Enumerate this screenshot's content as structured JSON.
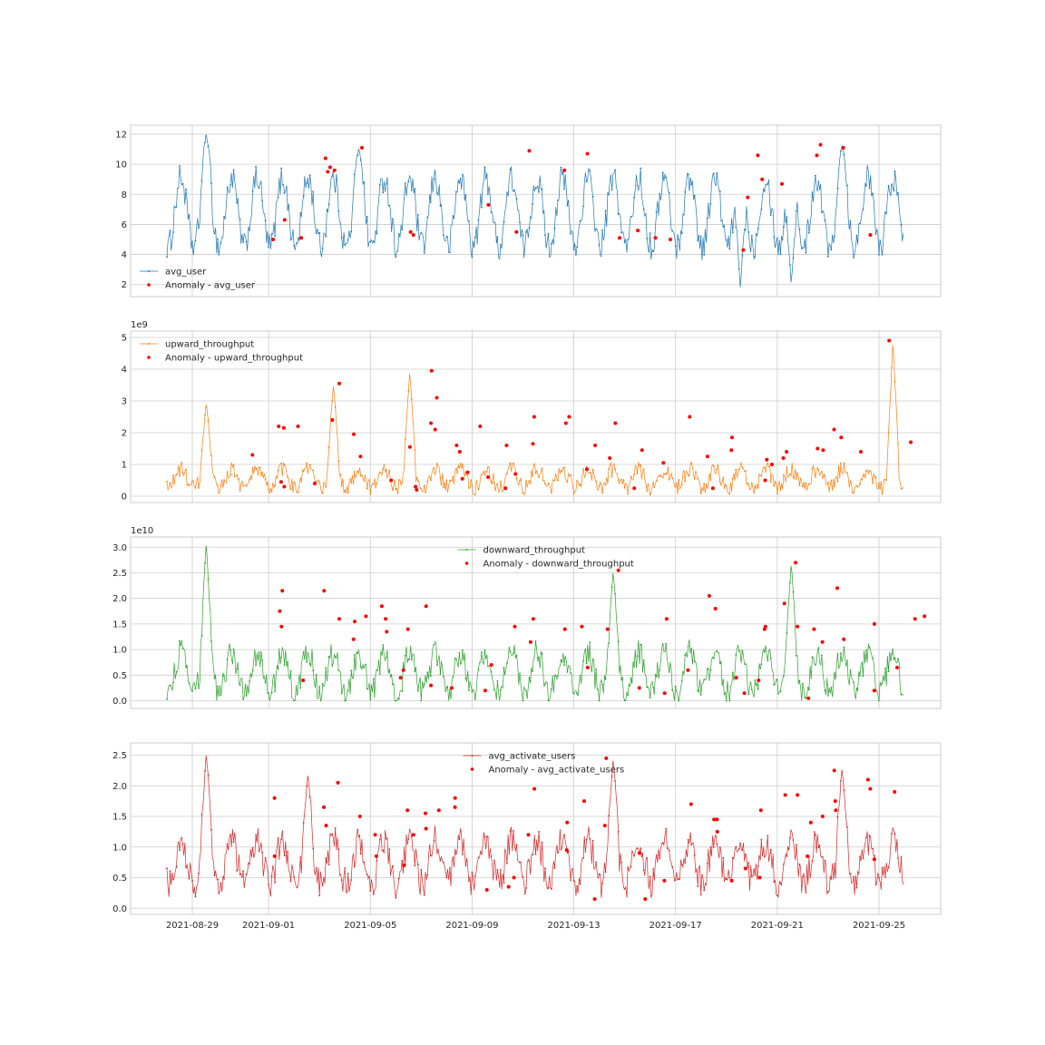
{
  "figure": {
    "x_ticks": [
      "2021-08-29",
      "2021-09-01",
      "2021-09-05",
      "2021-09-09",
      "2021-09-13",
      "2021-09-17",
      "2021-09-21",
      "2021-09-25"
    ]
  },
  "colors": {
    "avg_user": "#1f77b4",
    "upward_throughput": "#ff7f0e",
    "downward_throughput": "#2ca02c",
    "avg_activate_users": "#d62728",
    "anomaly": "#ff0000",
    "grid": "#cccccc",
    "frame": "#cccccc"
  },
  "chart_data": [
    {
      "type": "line",
      "x_range": [
        "2021-08-27",
        "2021-09-27"
      ],
      "series": [
        {
          "name": "avg_user",
          "mean": 6.8,
          "amplitude": 2.3,
          "noise": 0.9,
          "min": 1.6,
          "max": 12.1,
          "peaks": [
            [
              "2021-08-29",
              12.1
            ],
            [
              "2021-09-04",
              11.1
            ],
            [
              "2021-09-23",
              11.3
            ],
            [
              "2021-09-19",
              1.6
            ],
            [
              "2021-09-21",
              1.9
            ]
          ]
        },
        {
          "name": "Anomaly - avg_user",
          "x": [
            "2021-09-01",
            "2021-09-01",
            "2021-09-02",
            "2021-09-03",
            "2021-09-03",
            "2021-09-03",
            "2021-09-03",
            "2021-09-04",
            "2021-09-06",
            "2021-09-06",
            "2021-09-09",
            "2021-09-10",
            "2021-09-11",
            "2021-09-12",
            "2021-09-13",
            "2021-09-14",
            "2021-09-15",
            "2021-09-16",
            "2021-09-16",
            "2021-09-19",
            "2021-09-19",
            "2021-09-20",
            "2021-09-20",
            "2021-09-21",
            "2021-09-22",
            "2021-09-22",
            "2021-09-23",
            "2021-09-24"
          ],
          "y": [
            6.3,
            5.0,
            5.1,
            10.4,
            9.6,
            9.8,
            9.5,
            11.1,
            5.5,
            5.3,
            7.3,
            5.5,
            10.9,
            9.6,
            10.7,
            5.1,
            5.6,
            5.1,
            5.0,
            4.3,
            7.8,
            10.6,
            9.0,
            8.7,
            11.3,
            10.6,
            11.1,
            5.3
          ]
        }
      ],
      "ylim": [
        1.2,
        12.6
      ],
      "yticks": [
        2,
        4,
        6,
        8,
        10,
        12
      ],
      "scale_label": "",
      "legend": "lower-left"
    },
    {
      "type": "line",
      "x_range": [
        "2021-08-27",
        "2021-09-27"
      ],
      "series": [
        {
          "name": "upward_throughput",
          "mean": 0.55,
          "amplitude": 0.3,
          "noise": 0.25,
          "min": 0.05,
          "max": 4.9,
          "peaks": [
            [
              "2021-08-29",
              2.95
            ],
            [
              "2021-09-03",
              3.55
            ],
            [
              "2021-09-06",
              3.95
            ],
            [
              "2021-09-25",
              4.9
            ]
          ]
        },
        {
          "name": "Anomaly - upward_throughput",
          "x": [
            "2021-08-31",
            "2021-09-01",
            "2021-09-01",
            "2021-09-01",
            "2021-09-01",
            "2021-09-02",
            "2021-09-02",
            "2021-09-03",
            "2021-09-03",
            "2021-09-04",
            "2021-09-04",
            "2021-09-05",
            "2021-09-06",
            "2021-09-06",
            "2021-09-06",
            "2021-09-07",
            "2021-09-07",
            "2021-09-07",
            "2021-09-07",
            "2021-09-08",
            "2021-09-08",
            "2021-09-08",
            "2021-09-08",
            "2021-09-09",
            "2021-09-09",
            "2021-09-10",
            "2021-09-10",
            "2021-09-10",
            "2021-09-11",
            "2021-09-11",
            "2021-09-12",
            "2021-09-12",
            "2021-09-13",
            "2021-09-13",
            "2021-09-14",
            "2021-09-14",
            "2021-09-15",
            "2021-09-15",
            "2021-09-16",
            "2021-09-17",
            "2021-09-18",
            "2021-09-18",
            "2021-09-19",
            "2021-09-19",
            "2021-09-20",
            "2021-09-20",
            "2021-09-20",
            "2021-09-21",
            "2021-09-21",
            "2021-09-22",
            "2021-09-22",
            "2021-09-23",
            "2021-09-23",
            "2021-09-24",
            "2021-09-25",
            "2021-09-26"
          ],
          "y": [
            1.3,
            2.15,
            0.45,
            2.2,
            0.3,
            0.4,
            2.2,
            2.4,
            3.55,
            1.95,
            1.25,
            0.5,
            0.3,
            0.2,
            1.55,
            3.95,
            3.1,
            2.1,
            2.3,
            0.55,
            0.75,
            1.4,
            1.6,
            2.2,
            0.6,
            0.25,
            0.7,
            1.6,
            2.5,
            1.65,
            2.5,
            2.3,
            1.6,
            0.85,
            2.3,
            1.2,
            1.45,
            0.25,
            1.05,
            2.5,
            1.25,
            0.25,
            1.85,
            1.45,
            0.5,
            1.15,
            1.0,
            1.4,
            1.2,
            1.45,
            1.5,
            2.1,
            1.85,
            1.4,
            4.9,
            1.7
          ]
        }
      ],
      "ylim": [
        -0.2,
        5.2
      ],
      "yticks": [
        0,
        1,
        2,
        3,
        4,
        5
      ],
      "scale_label": "1e9",
      "legend": "top-left"
    },
    {
      "type": "line",
      "x_range": [
        "2021-08-27",
        "2021-09-27"
      ],
      "series": [
        {
          "name": "downward_throughput",
          "mean": 0.55,
          "amplitude": 0.4,
          "noise": 0.25,
          "min": 0.0,
          "max": 3.1,
          "peaks": [
            [
              "2021-08-29",
              3.1
            ],
            [
              "2021-09-14",
              2.55
            ],
            [
              "2021-09-21",
              2.7
            ]
          ]
        },
        {
          "name": "Anomaly - downward_throughput",
          "x": [
            "2021-09-01",
            "2021-09-01",
            "2021-09-01",
            "2021-09-02",
            "2021-09-03",
            "2021-09-03",
            "2021-09-04",
            "2021-09-04",
            "2021-09-04",
            "2021-09-05",
            "2021-09-05",
            "2021-09-05",
            "2021-09-06",
            "2021-09-06",
            "2021-09-06",
            "2021-09-07",
            "2021-09-07",
            "2021-09-08",
            "2021-09-09",
            "2021-09-09",
            "2021-09-10",
            "2021-09-11",
            "2021-09-11",
            "2021-09-12",
            "2021-09-13",
            "2021-09-13",
            "2021-09-14",
            "2021-09-14",
            "2021-09-15",
            "2021-09-16",
            "2021-09-16",
            "2021-09-17",
            "2021-09-18",
            "2021-09-18",
            "2021-09-19",
            "2021-09-19",
            "2021-09-20",
            "2021-09-20",
            "2021-09-20",
            "2021-09-21",
            "2021-09-21",
            "2021-09-21",
            "2021-09-22",
            "2021-09-22",
            "2021-09-22",
            "2021-09-23",
            "2021-09-23",
            "2021-09-24",
            "2021-09-24",
            "2021-09-25",
            "2021-09-26",
            "2021-09-26"
          ],
          "y": [
            2.15,
            1.45,
            1.75,
            0.4,
            1.6,
            2.15,
            1.2,
            1.65,
            1.55,
            1.6,
            1.35,
            1.85,
            0.45,
            0.6,
            1.4,
            0.3,
            1.85,
            0.25,
            0.2,
            0.7,
            1.45,
            1.15,
            1.6,
            1.4,
            1.45,
            0.65,
            1.4,
            2.55,
            0.25,
            1.6,
            0.15,
            0.6,
            2.05,
            1.8,
            0.15,
            0.45,
            0.4,
            1.4,
            1.45,
            1.45,
            2.7,
            1.9,
            0.05,
            1.4,
            1.15,
            1.2,
            2.2,
            0.2,
            1.5,
            0.65,
            1.6,
            1.65
          ]
        }
      ],
      "ylim": [
        -0.15,
        3.2
      ],
      "yticks": [
        0.0,
        0.5,
        1.0,
        1.5,
        2.0,
        2.5,
        3.0
      ],
      "scale_label": "1e10",
      "legend": "top-center"
    },
    {
      "type": "line",
      "x_range": [
        "2021-08-27",
        "2021-09-27"
      ],
      "series": [
        {
          "name": "avg_activate_users",
          "mean": 0.75,
          "amplitude": 0.35,
          "noise": 0.25,
          "min": 0.05,
          "max": 2.55,
          "peaks": [
            [
              "2021-08-29",
              2.55
            ],
            [
              "2021-09-02",
              2.2
            ],
            [
              "2021-09-14",
              2.45
            ],
            [
              "2021-09-23",
              2.3
            ]
          ]
        },
        {
          "name": "Anomaly - avg_activate_users",
          "x": [
            "2021-09-01",
            "2021-09-01",
            "2021-09-03",
            "2021-09-03",
            "2021-09-03",
            "2021-09-04",
            "2021-09-05",
            "2021-09-05",
            "2021-09-06",
            "2021-09-06",
            "2021-09-06",
            "2021-09-07",
            "2021-09-07",
            "2021-09-07",
            "2021-09-08",
            "2021-09-08",
            "2021-09-09",
            "2021-09-10",
            "2021-09-10",
            "2021-09-11",
            "2021-09-11",
            "2021-09-12",
            "2021-09-12",
            "2021-09-13",
            "2021-09-13",
            "2021-09-14",
            "2021-09-14",
            "2021-09-15",
            "2021-09-15",
            "2021-09-16",
            "2021-09-17",
            "2021-09-18",
            "2021-09-18",
            "2021-09-18",
            "2021-09-19",
            "2021-09-19",
            "2021-09-20",
            "2021-09-20",
            "2021-09-21",
            "2021-09-21",
            "2021-09-22",
            "2021-09-22",
            "2021-09-22",
            "2021-09-23",
            "2021-09-23",
            "2021-09-23",
            "2021-09-24",
            "2021-09-24",
            "2021-09-24",
            "2021-09-25"
          ],
          "y": [
            1.8,
            0.85,
            1.35,
            1.65,
            2.05,
            1.5,
            0.85,
            1.2,
            1.6,
            0.7,
            1.2,
            1.6,
            1.3,
            1.55,
            1.8,
            1.65,
            0.3,
            0.35,
            0.5,
            1.95,
            1.2,
            1.4,
            0.95,
            1.75,
            0.15,
            1.35,
            2.45,
            0.9,
            0.15,
            0.45,
            1.7,
            1.45,
            1.25,
            1.45,
            0.65,
            0.45,
            1.6,
            0.5,
            1.85,
            1.85,
            1.4,
            0.85,
            1.5,
            1.6,
            1.75,
            2.25,
            2.1,
            1.95,
            0.8,
            1.9
          ]
        }
      ],
      "ylim": [
        -0.1,
        2.7
      ],
      "yticks": [
        0.0,
        0.5,
        1.0,
        1.5,
        2.0,
        2.5
      ],
      "scale_label": "",
      "legend": "top-center"
    }
  ]
}
